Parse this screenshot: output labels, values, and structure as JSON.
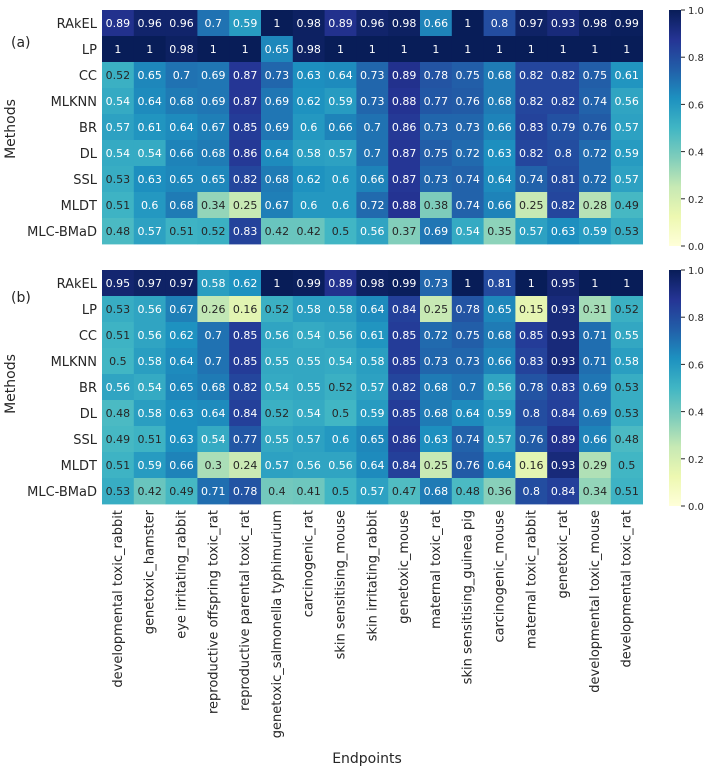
{
  "chart_data": {
    "type": "heatmap",
    "xlabel": "Endpoints",
    "columns": [
      "developmental toxic_rabbit",
      "genetoxic_hamster",
      "eye irritating_rabbit",
      "reproductive offspring toxic_rat",
      "reproductive parental toxic_rat",
      "genetoxic_salmonella typhimurium",
      "carcinogenic_rat",
      "skin sensitising_mouse",
      "skin irritating_rabbit",
      "genetoxic_mouse",
      "maternal toxic_rat",
      "skin sensitising_guinea pig",
      "carcinogenic_mouse",
      "maternal toxic_rabbit",
      "genetoxic_rat",
      "developmental toxic_mouse",
      "developmental toxic_rat"
    ],
    "colorbar": {
      "min": 0.0,
      "max": 1.0,
      "ticks": [
        "1.0",
        "0.8",
        "0.6",
        "0.4",
        "0.2",
        "0.0"
      ]
    },
    "panels": [
      {
        "label": "(a)",
        "ylabel": "Methods",
        "rows": [
          {
            "method": "RAkEL",
            "values": [
              0.89,
              0.96,
              0.96,
              0.7,
              0.59,
              1,
              0.98,
              0.89,
              0.96,
              0.98,
              0.66,
              1,
              0.8,
              0.97,
              0.93,
              0.98,
              0.99
            ]
          },
          {
            "method": "LP",
            "values": [
              1,
              1,
              0.98,
              1,
              1,
              0.65,
              0.98,
              1,
              1,
              1,
              1,
              1,
              1,
              1,
              1,
              1,
              1
            ]
          },
          {
            "method": "CC",
            "values": [
              0.52,
              0.65,
              0.7,
              0.69,
              0.87,
              0.73,
              0.63,
              0.64,
              0.73,
              0.89,
              0.78,
              0.75,
              0.68,
              0.82,
              0.82,
              0.75,
              0.61
            ]
          },
          {
            "method": "MLKNN",
            "values": [
              0.54,
              0.64,
              0.68,
              0.69,
              0.87,
              0.69,
              0.62,
              0.59,
              0.73,
              0.88,
              0.77,
              0.76,
              0.68,
              0.82,
              0.82,
              0.74,
              0.56
            ]
          },
          {
            "method": "BR",
            "values": [
              0.57,
              0.61,
              0.64,
              0.67,
              0.85,
              0.69,
              0.6,
              0.66,
              0.7,
              0.86,
              0.73,
              0.73,
              0.66,
              0.83,
              0.79,
              0.76,
              0.57
            ]
          },
          {
            "method": "DL",
            "values": [
              0.54,
              0.54,
              0.66,
              0.68,
              0.86,
              0.64,
              0.58,
              0.57,
              0.7,
              0.87,
              0.75,
              0.72,
              0.63,
              0.82,
              0.8,
              0.72,
              0.59
            ]
          },
          {
            "method": "SSL",
            "values": [
              0.53,
              0.63,
              0.65,
              0.65,
              0.82,
              0.68,
              0.62,
              0.6,
              0.66,
              0.87,
              0.73,
              0.74,
              0.64,
              0.74,
              0.81,
              0.72,
              0.57
            ]
          },
          {
            "method": "MLDT",
            "values": [
              0.51,
              0.6,
              0.68,
              0.34,
              0.25,
              0.67,
              0.6,
              0.6,
              0.72,
              0.88,
              0.38,
              0.74,
              0.66,
              0.25,
              0.82,
              0.28,
              0.49
            ]
          },
          {
            "method": "MLC-BMaD",
            "values": [
              0.48,
              0.57,
              0.51,
              0.52,
              0.83,
              0.42,
              0.42,
              0.5,
              0.56,
              0.37,
              0.69,
              0.54,
              0.35,
              0.57,
              0.63,
              0.59,
              0.53
            ]
          }
        ]
      },
      {
        "label": "(b)",
        "ylabel": "Methods",
        "rows": [
          {
            "method": "RAkEL",
            "values": [
              0.95,
              0.97,
              0.97,
              0.58,
              0.62,
              1,
              0.99,
              0.89,
              0.98,
              0.99,
              0.73,
              1,
              0.81,
              1,
              0.95,
              1,
              1
            ]
          },
          {
            "method": "LP",
            "values": [
              0.53,
              0.56,
              0.67,
              0.26,
              0.16,
              0.52,
              0.58,
              0.58,
              0.64,
              0.84,
              0.25,
              0.78,
              0.65,
              0.15,
              0.93,
              0.31,
              0.52
            ]
          },
          {
            "method": "CC",
            "values": [
              0.51,
              0.56,
              0.62,
              0.7,
              0.85,
              0.56,
              0.54,
              0.56,
              0.61,
              0.85,
              0.72,
              0.75,
              0.68,
              0.85,
              0.93,
              0.71,
              0.55
            ]
          },
          {
            "method": "MLKNN",
            "values": [
              0.5,
              0.58,
              0.64,
              0.7,
              0.85,
              0.55,
              0.55,
              0.54,
              0.58,
              0.85,
              0.73,
              0.73,
              0.66,
              0.83,
              0.93,
              0.71,
              0.58
            ]
          },
          {
            "method": "BR",
            "values": [
              0.56,
              0.54,
              0.65,
              0.68,
              0.82,
              0.54,
              0.55,
              0.52,
              0.57,
              0.82,
              0.68,
              0.7,
              0.56,
              0.78,
              0.83,
              0.69,
              0.53
            ]
          },
          {
            "method": "DL",
            "values": [
              0.48,
              0.58,
              0.63,
              0.64,
              0.84,
              0.52,
              0.54,
              0.5,
              0.59,
              0.85,
              0.68,
              0.64,
              0.59,
              0.8,
              0.84,
              0.69,
              0.53
            ]
          },
          {
            "method": "SSL",
            "values": [
              0.49,
              0.51,
              0.63,
              0.54,
              0.77,
              0.55,
              0.57,
              0.6,
              0.65,
              0.86,
              0.63,
              0.74,
              0.57,
              0.76,
              0.89,
              0.66,
              0.48
            ]
          },
          {
            "method": "MLDT",
            "values": [
              0.51,
              0.59,
              0.66,
              0.3,
              0.24,
              0.57,
              0.56,
              0.56,
              0.64,
              0.84,
              0.25,
              0.76,
              0.64,
              0.16,
              0.93,
              0.29,
              0.5
            ]
          },
          {
            "method": "MLC-BMaD",
            "values": [
              0.53,
              0.42,
              0.49,
              0.71,
              0.78,
              0.4,
              0.41,
              0.5,
              0.57,
              0.47,
              0.68,
              0.48,
              0.36,
              0.8,
              0.84,
              0.34,
              0.51
            ]
          }
        ]
      }
    ]
  }
}
